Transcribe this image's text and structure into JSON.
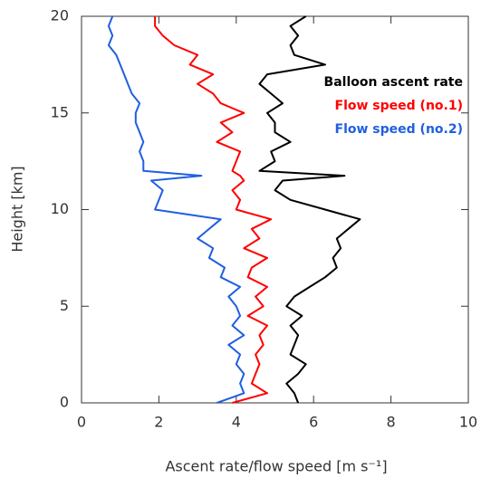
{
  "chart_data": {
    "type": "profile",
    "xlabel": "Ascent rate/flow speed [m s⁻¹]",
    "ylabel": "Height [km]",
    "heights": [
      0,
      0.5,
      1,
      1.5,
      2,
      2.5,
      3,
      3.5,
      4,
      4.5,
      5,
      5.5,
      6,
      6.5,
      7,
      7.5,
      8,
      8.5,
      9,
      9.5,
      10,
      10.5,
      11,
      11.5,
      11.75,
      12,
      12.5,
      13,
      13.5,
      14,
      14.5,
      15,
      15.5,
      16,
      16.5,
      17,
      17.5,
      18,
      18.5,
      19,
      19.5,
      20
    ],
    "series": [
      {
        "name": "Balloon ascent rate",
        "color": "#000000",
        "values": [
          5.6,
          5.5,
          5.3,
          5.6,
          5.8,
          5.4,
          5.5,
          5.6,
          5.4,
          5.7,
          5.3,
          5.5,
          5.9,
          6.3,
          6.6,
          6.5,
          6.7,
          6.6,
          6.9,
          7.2,
          6.3,
          5.4,
          5.0,
          5.2,
          6.8,
          4.6,
          5.0,
          4.9,
          5.4,
          5.0,
          5.0,
          4.8,
          5.2,
          4.9,
          4.6,
          4.8,
          6.3,
          5.5,
          5.4,
          5.6,
          5.4,
          5.8
        ]
      },
      {
        "name": "Flow speed (no.1)",
        "color": "#ff0000",
        "values": [
          3.9,
          4.8,
          4.4,
          4.5,
          4.6,
          4.5,
          4.7,
          4.6,
          4.8,
          4.3,
          4.7,
          4.5,
          4.8,
          4.3,
          4.4,
          4.8,
          4.2,
          4.6,
          4.4,
          4.9,
          4.0,
          4.1,
          3.9,
          4.2,
          4.1,
          3.9,
          4.0,
          4.1,
          3.5,
          3.9,
          3.6,
          4.2,
          3.6,
          3.4,
          3.0,
          3.4,
          2.8,
          3.0,
          2.4,
          2.1,
          1.9,
          1.9
        ]
      },
      {
        "name": "Flow speed (no.2)",
        "color": "#1f5fe0",
        "values": [
          3.5,
          4.2,
          4.1,
          4.2,
          4.0,
          4.1,
          3.8,
          4.2,
          3.9,
          4.1,
          4.0,
          3.8,
          4.1,
          3.6,
          3.7,
          3.3,
          3.4,
          3.0,
          3.3,
          3.6,
          1.9,
          2.0,
          2.1,
          1.8,
          3.1,
          1.6,
          1.6,
          1.5,
          1.6,
          1.5,
          1.4,
          1.4,
          1.5,
          1.3,
          1.2,
          1.1,
          1.0,
          0.9,
          0.7,
          0.8,
          0.7,
          0.8
        ]
      }
    ],
    "xlim": [
      0,
      10
    ],
    "xticks": [
      0,
      2,
      4,
      6,
      8,
      10
    ],
    "ylim": [
      0,
      20
    ],
    "yticks": [
      0,
      5,
      10,
      15,
      20
    ],
    "legend": "upper right"
  }
}
